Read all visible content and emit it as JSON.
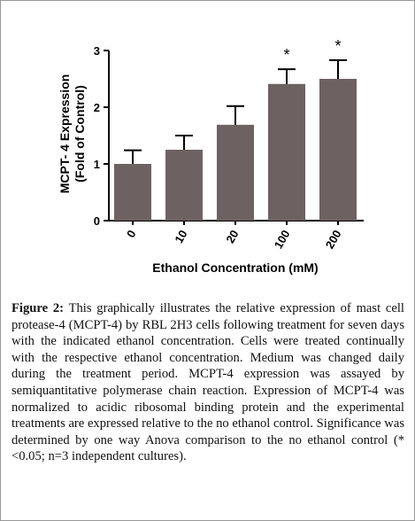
{
  "chart_data": {
    "type": "bar",
    "ylabel": [
      "MCPT- 4 Expression",
      "(Fold of Control)"
    ],
    "xlabel": "Ethanol Concentration (mM)",
    "categories": [
      "0",
      "10",
      "20",
      "100",
      "200"
    ],
    "values": [
      1.0,
      1.25,
      1.69,
      2.41,
      2.5
    ],
    "errors": [
      0.24,
      0.25,
      0.33,
      0.26,
      0.33
    ],
    "markers": [
      null,
      null,
      null,
      "*",
      "*"
    ],
    "color": "#6e6161",
    "ylim": [
      0,
      3
    ],
    "yticks": [
      0,
      1,
      2,
      3
    ]
  },
  "caption": {
    "label": "Figure 2:",
    "text": "This graphically illustrates the relative expression of mast cell protease-4 (MCPT-4) by RBL 2H3 cells following treatment for seven days with the indicated ethanol concentration. Cells were treated continually with the respective ethanol concentration. Medium was changed daily during the treatment period. MCPT-4 expression was assayed by semiquantitative polymerase chain reaction. Expression of MCPT-4 was normalized to acidic ribosomal binding protein and the experimental treatments are expressed relative to the no ethanol control. Significance was determined by one way Anova comparison to the no ethanol control (*<0.05; n=3 independent cultures)."
  }
}
